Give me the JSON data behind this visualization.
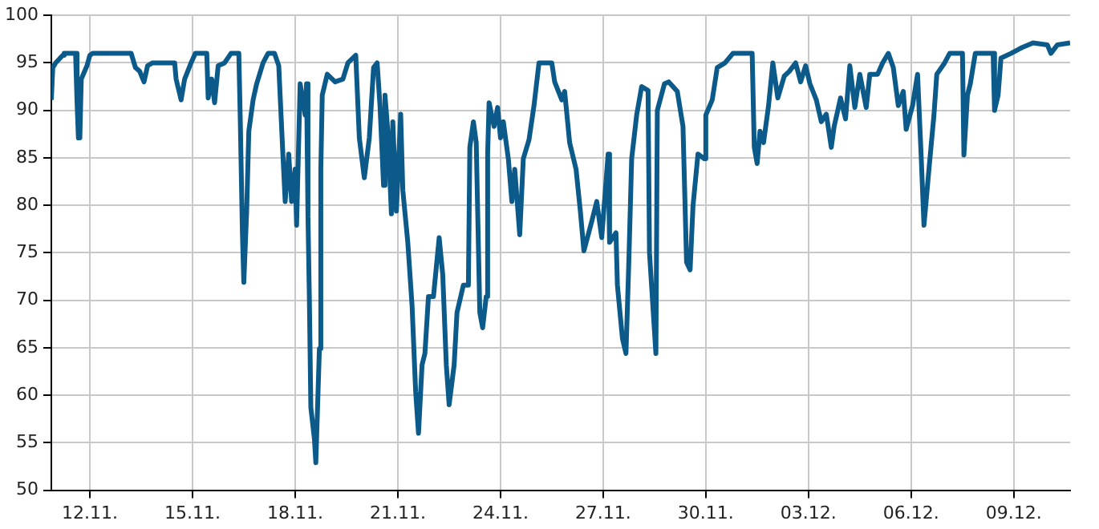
{
  "chart_data": {
    "type": "line",
    "color": "#0b5a8a",
    "line_style": "solid",
    "marker": "none",
    "grid": true,
    "legend": false,
    "xlim": [
      "--11-10T21:00",
      "--12-10T15:30"
    ],
    "xticks": [
      {
        "value": "--11-12",
        "label": "12.11."
      },
      {
        "value": "--11-15",
        "label": "15.11."
      },
      {
        "value": "--11-18",
        "label": "18.11."
      },
      {
        "value": "--11-21",
        "label": "21.11."
      },
      {
        "value": "--11-24",
        "label": "24.11."
      },
      {
        "value": "--11-27",
        "label": "27.11."
      },
      {
        "value": "--11-30",
        "label": "30.11."
      },
      {
        "value": "--12-03",
        "label": "03.12."
      },
      {
        "value": "--12-06",
        "label": "06.12."
      },
      {
        "value": "--12-09",
        "label": "09.12."
      }
    ],
    "ylim": [
      50,
      100
    ],
    "yticks": [
      50,
      55,
      60,
      65,
      70,
      75,
      80,
      85,
      90,
      95,
      100
    ],
    "x": [
      "--11-10T21:00",
      "--11-10T22:00",
      "--11-11T00:00",
      "--11-11T05:00",
      "--11-11T06:00",
      "--11-11T14:00",
      "--11-11T15:00",
      "--11-11T16:00",
      "--11-11T17:00",
      "--11-11T18:00",
      "--11-11T22:00",
      "--11-12T00:00",
      "--11-12T02:00",
      "--11-13T05:00",
      "--11-13T08:00",
      "--11-13T11:00",
      "--11-13T14:00",
      "--11-13T16:30",
      "--11-13T20:00",
      "--11-14T11:30",
      "--11-14T12:30",
      "--11-14T16:00",
      "--11-14T18:30",
      "--11-14T23:00",
      "--11-15T02:00",
      "--11-15T10:00",
      "--11-15T11:00",
      "--11-15T13:30",
      "--11-15T15:30",
      "--11-15T18:00",
      "--11-15T22:30",
      "--11-16T03:00",
      "--11-16T08:30",
      "--11-16T09:30",
      "--11-16T11:00",
      "--11-16T12:00",
      "--11-16T14:00",
      "--11-16T15:30",
      "--11-16T18:30",
      "--11-16T21:00",
      "--11-17T01:30",
      "--11-17T05:00",
      "--11-17T09:30",
      "--11-17T12:30",
      "--11-17T15:00",
      "--11-17T17:00",
      "--11-17T19:30",
      "--11-17T21:30",
      "--11-18T00:00",
      "--11-18T01:00",
      "--11-18T03:30",
      "--11-18T07:00",
      "--11-18T08:00",
      "--11-18T09:00",
      "--11-18T10:00",
      "--11-18T11:00",
      "--11-18T13:30",
      "--11-18T14:30",
      "--11-18T17:00",
      "--11-18T18:00",
      "--11-18T19:00",
      "--11-18T22:30",
      "--11-19T04:00",
      "--11-19T09:30",
      "--11-19T13:00",
      "--11-19T18:30",
      "--11-19T21:00",
      "--11-20T00:30",
      "--11-20T04:00",
      "--11-20T07:00",
      "--11-20T09:30",
      "--11-20T11:30",
      "--11-20T14:00",
      "--11-20T15:00",
      "--11-20T17:00",
      "--11-20T19:30",
      "--11-20T20:30",
      "--11-20T23:00",
      "--11-21T02:00",
      "--11-21T03:30",
      "--11-21T07:00",
      "--11-21T10:00",
      "--11-21T12:30",
      "--11-21T14:30",
      "--11-21T17:00",
      "--11-21T19:00",
      "--11-21T21:30",
      "--11-22T01:00",
      "--11-22T05:00",
      "--11-22T07:30",
      "--11-22T10:00",
      "--11-22T12:00",
      "--11-22T15:30",
      "--11-22T17:30",
      "--11-22T22:00",
      "--11-23T01:30",
      "--11-23T02:30",
      "--11-23T05:00",
      "--11-23T07:00",
      "--11-23T09:30",
      "--11-23T11:30",
      "--11-23T14:00",
      "--11-23T15:00",
      "--11-23T16:00",
      "--11-23T19:30",
      "--11-23T22:00",
      "--11-24T00:00",
      "--11-24T02:00",
      "--11-24T05:30",
      "--11-24T08:00",
      "--11-24T10:00",
      "--11-24T13:30",
      "--11-24T16:00",
      "--11-24T20:00",
      "--11-24T23:30",
      "--11-25T03:00",
      "--11-25T04:00",
      "--11-25T12:00",
      "--11-25T14:00",
      "--11-25T19:00",
      "--11-25T21:00",
      "--11-26T00:30",
      "--11-26T05:00",
      "--11-26T08:00",
      "--11-26T10:30",
      "--11-26T16:00",
      "--11-26T19:30",
      "--11-26T23:00",
      "--11-27T03:30",
      "--11-27T04:30",
      "--11-27T09:00",
      "--11-27T10:00",
      "--11-27T13:30",
      "--11-27T16:00",
      "--11-27T18:00",
      "--11-27T20:00",
      "--11-27T23:30",
      "--11-28T03:00",
      "--11-28T07:30",
      "--11-28T08:30",
      "--11-28T13:00",
      "--11-28T14:00",
      "--11-28T19:00",
      "--11-28T22:00",
      "--11-29T04:00",
      "--11-29T08:00",
      "--11-29T10:30",
      "--11-29T13:00",
      "--11-29T15:00",
      "--11-29T18:30",
      "--11-29T23:00",
      "--11-30T00:00",
      "--11-30T04:30",
      "--11-30T08:00",
      "--11-30T13:30",
      "--11-30T19:00",
      "--12-01T08:30",
      "--12-01T10:00",
      "--12-01T12:00",
      "--12-01T14:00",
      "--12-01T16:30",
      "--12-01T20:00",
      "--12-01T23:00",
      "--12-02T02:30",
      "--12-02T07:00",
      "--12-02T10:30",
      "--12-02T15:00",
      "--12-02T18:30",
      "--12-02T22:00",
      "--12-03T01:00",
      "--12-03T05:30",
      "--12-03T09:00",
      "--12-03T12:30",
      "--12-03T16:00",
      "--12-03T18:00",
      "--12-03T22:30",
      "--12-04T02:00",
      "--12-04T05:00",
      "--12-04T08:30",
      "--12-04T12:00",
      "--12-04T16:30",
      "--12-04T19:00",
      "--12-05T00:30",
      "--12-05T04:00",
      "--12-05T08:00",
      "--12-05T11:30",
      "--12-05T15:00",
      "--12-05T18:30",
      "--12-05T20:30",
      "--12-06T01:00",
      "--12-06T04:30",
      "--12-06T07:00",
      "--12-06T09:00",
      "--12-06T12:30",
      "--12-06T16:00",
      "--12-06T18:00",
      "--12-06T23:30",
      "--12-07T03:00",
      "--12-07T12:00",
      "--12-07T13:00",
      "--12-07T15:30",
      "--12-07T17:30",
      "--12-07T21:00",
      "--12-08T09:30",
      "--12-08T10:30",
      "--12-08T13:00",
      "--12-08T15:00",
      "--12-08T22:00",
      "--12-09T05:30",
      "--12-09T13:30",
      "--12-09T23:30",
      "--12-10T02:00",
      "--12-10T06:30",
      "--12-10T15:30"
    ],
    "values": [
      91.1,
      94.5,
      95,
      95.8,
      96,
      96,
      91,
      87.1,
      87.1,
      93.3,
      94.7,
      95.8,
      96,
      96,
      94.5,
      94.1,
      93,
      94.7,
      95,
      95,
      93.3,
      91.1,
      93.3,
      95,
      96,
      96,
      91.3,
      93.3,
      90.8,
      94.7,
      95,
      96,
      96,
      89.1,
      77.1,
      71.9,
      79.4,
      87.8,
      91.1,
      92.8,
      95,
      96,
      96,
      94.7,
      86.6,
      80.4,
      85.4,
      80.4,
      83.8,
      77.9,
      92.8,
      89.5,
      92.8,
      78.8,
      69.9,
      58.7,
      55.4,
      52.9,
      64.9,
      83.8,
      91.6,
      93.8,
      93,
      93.3,
      95,
      95.8,
      87.1,
      82.9,
      87.1,
      94.5,
      95,
      90.5,
      82.1,
      91.6,
      87.8,
      79.1,
      88.8,
      79.4,
      89.6,
      81.6,
      76.1,
      69.4,
      60.4,
      56,
      63.2,
      64.4,
      70.4,
      70.4,
      76.6,
      72.7,
      63.2,
      59,
      63.2,
      68.7,
      71.6,
      71.6,
      86.1,
      88.8,
      86.6,
      68.7,
      67.1,
      70.4,
      85.4,
      90.8,
      88.3,
      90.3,
      87.1,
      88.8,
      84.9,
      80.4,
      83.8,
      76.9,
      84.9,
      86.9,
      90.5,
      95,
      95,
      95,
      93,
      91.1,
      92,
      86.6,
      83.8,
      79.4,
      75.2,
      78.3,
      80.4,
      76.6,
      85.4,
      76.1,
      77.1,
      71.6,
      66,
      64.4,
      74,
      84.9,
      89.5,
      92.5,
      92.1,
      75,
      64.4,
      90,
      92.8,
      93,
      92,
      88.3,
      74,
      73.2,
      79.9,
      85.4,
      84.9,
      89.5,
      91.1,
      94.5,
      95,
      96,
      96,
      86.1,
      84.4,
      87.8,
      86.6,
      90.5,
      95,
      91.3,
      93.6,
      94.1,
      95,
      93,
      94.7,
      92.8,
      91.1,
      88.8,
      89.6,
      86.1,
      88.3,
      91.3,
      89.1,
      94.7,
      90.3,
      93.8,
      90.3,
      93.8,
      93.8,
      95,
      96,
      94.5,
      90.5,
      92,
      88,
      90.5,
      93.8,
      85.3,
      77.9,
      83.8,
      89.5,
      93.8,
      95,
      96,
      96,
      85.3,
      91.6,
      92.8,
      96,
      96,
      90,
      91.6,
      95.5,
      96,
      96.6,
      97.1,
      96.9,
      96,
      96.9,
      97.1
    ]
  }
}
